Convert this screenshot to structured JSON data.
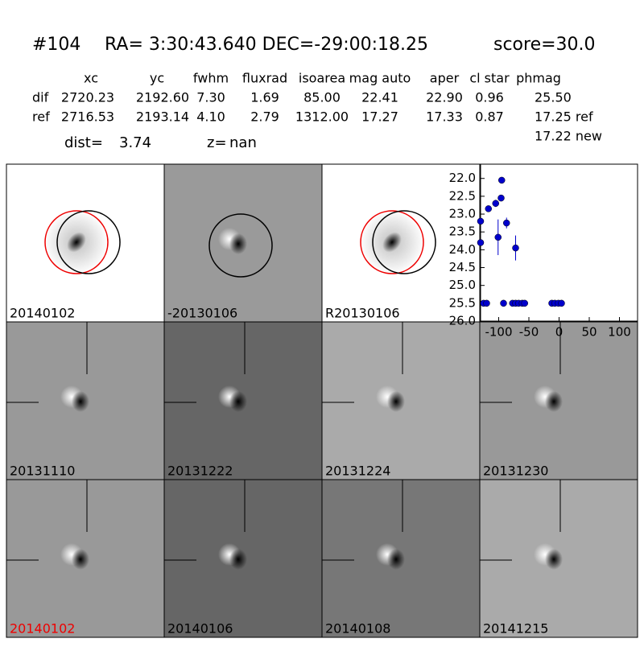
{
  "header": {
    "id": "#104",
    "coords": "RA= 3:30:43.640 DEC=-29:00:18.25",
    "score": "score=30.0"
  },
  "table": {
    "columns": [
      "xc",
      "yc",
      "fwhm",
      "fluxrad",
      "isoarea",
      "mag auto",
      "aper",
      "cl star",
      "phmag"
    ],
    "rows": [
      [
        "dif",
        "2720.23",
        "2192.60",
        "7.30",
        "1.69",
        "85.00",
        "22.41",
        "22.90",
        "0.96",
        "25.50"
      ],
      [
        "ref",
        "2716.53",
        "2193.14",
        "4.10",
        "2.79",
        "1312.00",
        "17.27",
        "17.33",
        "0.87",
        "17.25 ref"
      ]
    ],
    "extra": "17.22 new"
  },
  "dist": {
    "dist_label": "dist=",
    "dist": "3.74",
    "z_label": "z=",
    "z": "nan"
  },
  "panels": [
    "20140102",
    "-20130106",
    "R20130106",
    "20131110",
    "20131222",
    "20131224",
    "20131230",
    "20140102",
    "20140106",
    "20140108",
    "20141215"
  ],
  "chart_data": {
    "type": "errorbar",
    "color": "#0000cc",
    "x": [
      -130,
      -130,
      -125,
      -120,
      -117,
      -105,
      -101,
      -96,
      -95,
      -92,
      -87,
      -77,
      -72,
      -72,
      -67,
      -61,
      -57,
      -12,
      -7,
      -1,
      4
    ],
    "values": [
      23.2,
      23.8,
      25.5,
      25.5,
      22.85,
      22.7,
      23.65,
      22.55,
      22.05,
      25.5,
      23.25,
      25.5,
      25.5,
      23.95,
      25.5,
      25.5,
      25.5,
      25.5,
      25.5,
      25.5,
      25.5
    ],
    "errors": [
      0,
      0,
      0,
      0,
      0.05,
      0.1,
      0.5,
      0.05,
      0.07,
      0,
      0.15,
      0,
      0,
      0.35,
      0,
      0,
      0,
      0,
      0,
      0,
      0
    ],
    "xlim": [
      -130,
      130
    ],
    "xticks": [
      -100,
      -50,
      0,
      50,
      100
    ],
    "ylim": [
      26.0,
      21.6
    ],
    "yticks": [
      {
        "value": 22,
        "label": "22.0"
      },
      22.5,
      {
        "value": 23,
        "label": "23.0"
      },
      23.5,
      {
        "value": 24,
        "label": "24.0"
      },
      24.5,
      {
        "value": 25,
        "label": "25.0"
      },
      25.5,
      {
        "value": 26,
        "label": "26.0"
      }
    ]
  }
}
